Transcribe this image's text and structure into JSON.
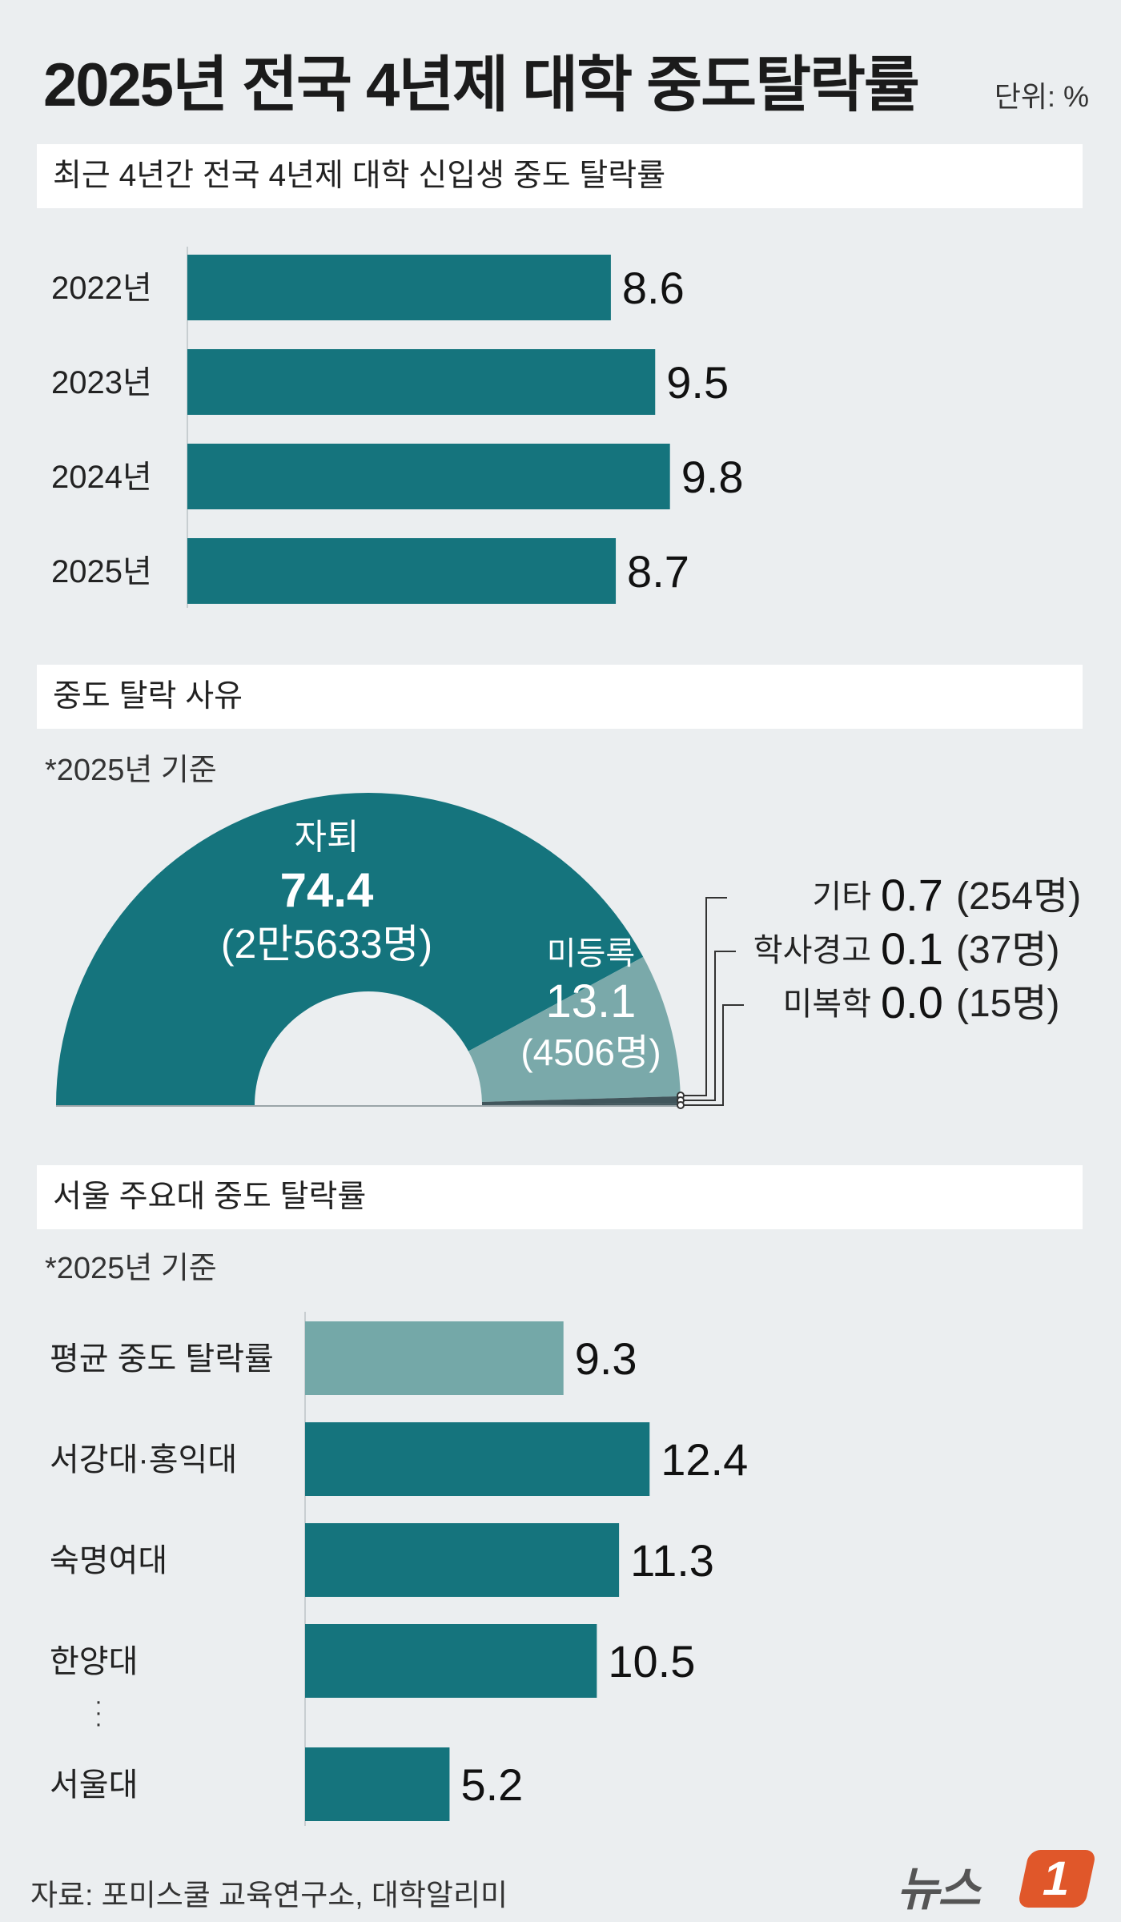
{
  "title": "2025년 전국 4년제 대학 중도탈락률",
  "unit": "단위: %",
  "colors": {
    "teal": "#15747d",
    "teal_light": "#74a8a8",
    "pie_light": "#7aa9aa",
    "pie_dark": "#41565c"
  },
  "sections": {
    "trend": "최근 4년간 전국 4년제 대학 신입생 중도 탈락률",
    "reasons": "중도 탈락 사유",
    "seoul": "서울 주요대 중도 탈락률"
  },
  "notes": {
    "reasons": "*2025년 기준",
    "seoul": "*2025년 기준"
  },
  "chart_data": [
    {
      "type": "bar",
      "orientation": "horizontal",
      "title": "최근 4년간 전국 4년제 대학 신입생 중도 탈락률",
      "categories": [
        "2022년",
        "2023년",
        "2024년",
        "2025년"
      ],
      "values": [
        8.6,
        9.5,
        9.8,
        8.7
      ],
      "value_labels": [
        "8.6",
        "9.5",
        "9.8",
        "8.7"
      ],
      "xlim": [
        0,
        12
      ],
      "grid": false
    },
    {
      "type": "pie",
      "shape": "half-donut",
      "title": "중도 탈락 사유",
      "slices": [
        {
          "name": "자퇴",
          "value": 74.4,
          "value_label": "74.4",
          "count": "(2만5633명)"
        },
        {
          "name": "미등록",
          "value": 13.1,
          "value_label": "13.1",
          "count": "(4506명)"
        },
        {
          "name": "기타",
          "value": 0.7,
          "value_label": "0.7",
          "count": "(254명)"
        },
        {
          "name": "학사경고",
          "value": 0.1,
          "value_label": "0.1",
          "count": "(37명)"
        },
        {
          "name": "미복학",
          "value": 0.0,
          "value_label": "0.0",
          "count": "(15명)"
        }
      ]
    },
    {
      "type": "bar",
      "orientation": "horizontal",
      "title": "서울 주요대 중도 탈락률",
      "categories": [
        "평균 중도 탈락률",
        "서강대·홍익대",
        "숙명여대",
        "한양대",
        "서울대"
      ],
      "values": [
        9.3,
        12.4,
        11.3,
        10.5,
        5.2
      ],
      "value_labels": [
        "9.3",
        "12.4",
        "11.3",
        "10.5",
        "5.2"
      ],
      "highlight": [
        true,
        false,
        false,
        false,
        false
      ],
      "xlim": [
        0,
        14
      ],
      "grid": false
    }
  ],
  "footer": "자료: 포미스쿨 교육연구소, 대학알리미",
  "logo": {
    "text": "뉴스",
    "badge": "1"
  }
}
